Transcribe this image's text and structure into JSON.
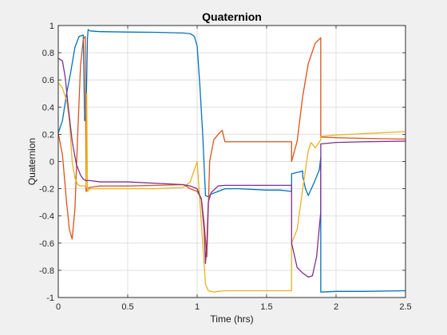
{
  "chart_data": {
    "type": "line",
    "title": "Quaternion",
    "xlabel": "Time (hrs)",
    "ylabel": "Quaternion",
    "xlim": [
      0,
      2.5
    ],
    "ylim": [
      -1,
      1
    ],
    "xticks": [
      0,
      0.5,
      1,
      1.5,
      2,
      2.5
    ],
    "xtick_labels": [
      "0",
      "0.5",
      "1",
      "1.5",
      "2",
      "2.5"
    ],
    "yticks": [
      -1,
      -0.8,
      -0.6,
      -0.4,
      -0.2,
      0,
      0.2,
      0.4,
      0.6,
      0.8,
      1
    ],
    "ytick_labels": [
      "-1",
      "-0.8",
      "-0.6",
      "-0.4",
      "-0.2",
      "0",
      "0.2",
      "0.4",
      "0.6",
      "0.8",
      "1"
    ],
    "grid": true,
    "series": [
      {
        "color": "#0072BD",
        "x": [
          0,
          0.03,
          0.06,
          0.09,
          0.12,
          0.15,
          0.18,
          0.19,
          0.2,
          0.21,
          0.215,
          0.23,
          0.3,
          0.5,
          0.7,
          0.9,
          0.95,
          0.98,
          1.0,
          1.02,
          1.04,
          1.06,
          1.08,
          1.1,
          1.15,
          1.2,
          1.3,
          1.5,
          1.6,
          1.68,
          1.68,
          1.72,
          1.76,
          1.76,
          1.78,
          1.8,
          1.84,
          1.88,
          1.89,
          1.89,
          2.0,
          2.2,
          2.5
        ],
        "y": [
          0.21,
          0.3,
          0.5,
          0.66,
          0.84,
          0.92,
          0.93,
          0.3,
          0.35,
          0.9,
          0.97,
          0.96,
          0.955,
          0.952,
          0.95,
          0.945,
          0.94,
          0.92,
          0.85,
          0.55,
          0.2,
          -0.25,
          -0.26,
          -0.24,
          -0.22,
          -0.2,
          -0.2,
          -0.21,
          -0.21,
          -0.22,
          -0.09,
          -0.08,
          -0.07,
          -0.11,
          -0.2,
          -0.25,
          -0.16,
          -0.06,
          0.03,
          -0.96,
          -0.955,
          -0.955,
          -0.95
        ]
      },
      {
        "color": "#D95319",
        "x": [
          0,
          0.03,
          0.06,
          0.08,
          0.1,
          0.12,
          0.14,
          0.16,
          0.18,
          0.195,
          0.2,
          0.21,
          0.23,
          0.3,
          0.5,
          0.7,
          0.9,
          0.95,
          1.0,
          1.03,
          1.05,
          1.07,
          1.09,
          1.12,
          1.16,
          1.18,
          1.2,
          1.4,
          1.6,
          1.68,
          1.68,
          1.72,
          1.76,
          1.8,
          1.85,
          1.89,
          1.89,
          2.0,
          2.2,
          2.5
        ],
        "y": [
          0.21,
          0.05,
          -0.3,
          -0.5,
          -0.57,
          -0.35,
          0.2,
          0.7,
          0.9,
          0.92,
          -0.22,
          -0.2,
          -0.19,
          -0.18,
          -0.18,
          -0.175,
          -0.17,
          -0.2,
          -0.22,
          -0.27,
          -0.45,
          -0.7,
          0.0,
          0.16,
          0.21,
          0.23,
          0.145,
          0.145,
          0.145,
          0.145,
          0.0,
          0.15,
          0.48,
          0.72,
          0.87,
          0.91,
          0.18,
          0.175,
          0.17,
          0.165
        ]
      },
      {
        "color": "#EDB120",
        "x": [
          0,
          0.03,
          0.06,
          0.08,
          0.1,
          0.12,
          0.14,
          0.16,
          0.18,
          0.2,
          0.205,
          0.21,
          0.23,
          0.3,
          0.5,
          0.7,
          0.9,
          0.95,
          1.0,
          1.04,
          1.06,
          1.08,
          1.1,
          1.12,
          1.15,
          1.2,
          1.5,
          1.68,
          1.68,
          1.72,
          1.76,
          1.8,
          1.82,
          1.85,
          1.89,
          1.89,
          2.0,
          2.2,
          2.5
        ],
        "y": [
          0.58,
          0.54,
          0.45,
          0.3,
          0.0,
          -0.12,
          -0.17,
          -0.18,
          -0.18,
          -0.18,
          0.5,
          -0.22,
          -0.2,
          -0.2,
          -0.2,
          -0.2,
          -0.19,
          -0.15,
          0.0,
          -0.6,
          -0.9,
          -0.95,
          -0.955,
          -0.96,
          -0.955,
          -0.95,
          -0.95,
          -0.95,
          -0.6,
          -0.5,
          -0.2,
          0.08,
          0.14,
          0.1,
          0.16,
          0.185,
          0.195,
          0.205,
          0.22
        ]
      },
      {
        "color": "#7E2F8E",
        "x": [
          0,
          0.03,
          0.05,
          0.07,
          0.1,
          0.13,
          0.16,
          0.18,
          0.2,
          0.21,
          0.23,
          0.3,
          0.5,
          0.7,
          0.9,
          0.95,
          1.0,
          1.03,
          1.05,
          1.06,
          1.07,
          1.08,
          1.1,
          1.15,
          1.2,
          1.4,
          1.68,
          1.68,
          1.72,
          1.76,
          1.8,
          1.83,
          1.86,
          1.89,
          1.89,
          2.0,
          2.2,
          2.5
        ],
        "y": [
          0.76,
          0.74,
          0.62,
          0.42,
          0.15,
          -0.02,
          -0.1,
          -0.13,
          -0.14,
          -0.14,
          -0.14,
          -0.15,
          -0.15,
          -0.16,
          -0.17,
          -0.18,
          -0.2,
          -0.28,
          -0.5,
          -0.75,
          -0.6,
          -0.3,
          -0.23,
          -0.18,
          -0.175,
          -0.175,
          -0.175,
          -0.6,
          -0.78,
          -0.82,
          -0.85,
          -0.84,
          -0.7,
          -0.37,
          0.13,
          0.14,
          0.145,
          0.15
        ]
      }
    ]
  }
}
